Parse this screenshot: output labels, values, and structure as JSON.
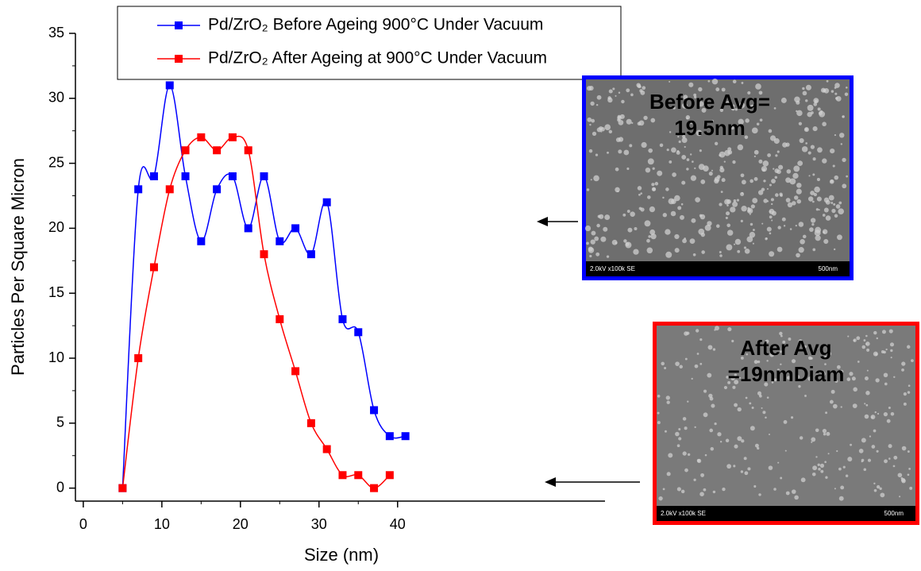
{
  "chart_data": {
    "type": "scatter-line",
    "xlabel": "Size (nm)",
    "ylabel": "Particles Per Square Micron",
    "xlim": [
      -1,
      66.4
    ],
    "ylim": [
      -1,
      35
    ],
    "xticks": [
      0,
      10,
      20,
      30,
      40
    ],
    "yticks": [
      0,
      5,
      10,
      15,
      20,
      25,
      30,
      35
    ],
    "series": [
      {
        "name": "Pd/ZrO₂ Before Ageing 900°C Under Vacuum",
        "color": "#0000ff",
        "x": [
          5,
          7,
          9,
          11,
          13,
          15,
          17,
          19,
          21,
          23,
          25,
          27,
          29,
          31,
          33,
          35,
          37,
          39,
          41
        ],
        "values": [
          0,
          23,
          24,
          31,
          24,
          19,
          23,
          24,
          20,
          24,
          19,
          20,
          18,
          22,
          13,
          12,
          6,
          4,
          4
        ]
      },
      {
        "name": "Pd/ZrO₂ After Ageing at 900°C Under Vacuum",
        "color": "#ff0000",
        "x": [
          5,
          7,
          9,
          11,
          13,
          15,
          17,
          19,
          21,
          23,
          25,
          27,
          29,
          31,
          33,
          35,
          37,
          39
        ],
        "values": [
          0,
          10,
          17,
          23,
          26,
          27,
          26,
          27,
          26,
          18,
          13,
          9,
          5,
          3,
          1,
          1,
          0,
          1
        ]
      }
    ],
    "insets": [
      {
        "lines": [
          "Before Avg=",
          "19.5nm"
        ],
        "info": "2.0kV x100k SE",
        "scale": "500nm",
        "color": "#0000ff"
      },
      {
        "lines": [
          "After Avg",
          "=19nmDiam"
        ],
        "info": "2.0kV x100k SE",
        "scale": "500nm",
        "color": "#ff0000"
      }
    ]
  }
}
